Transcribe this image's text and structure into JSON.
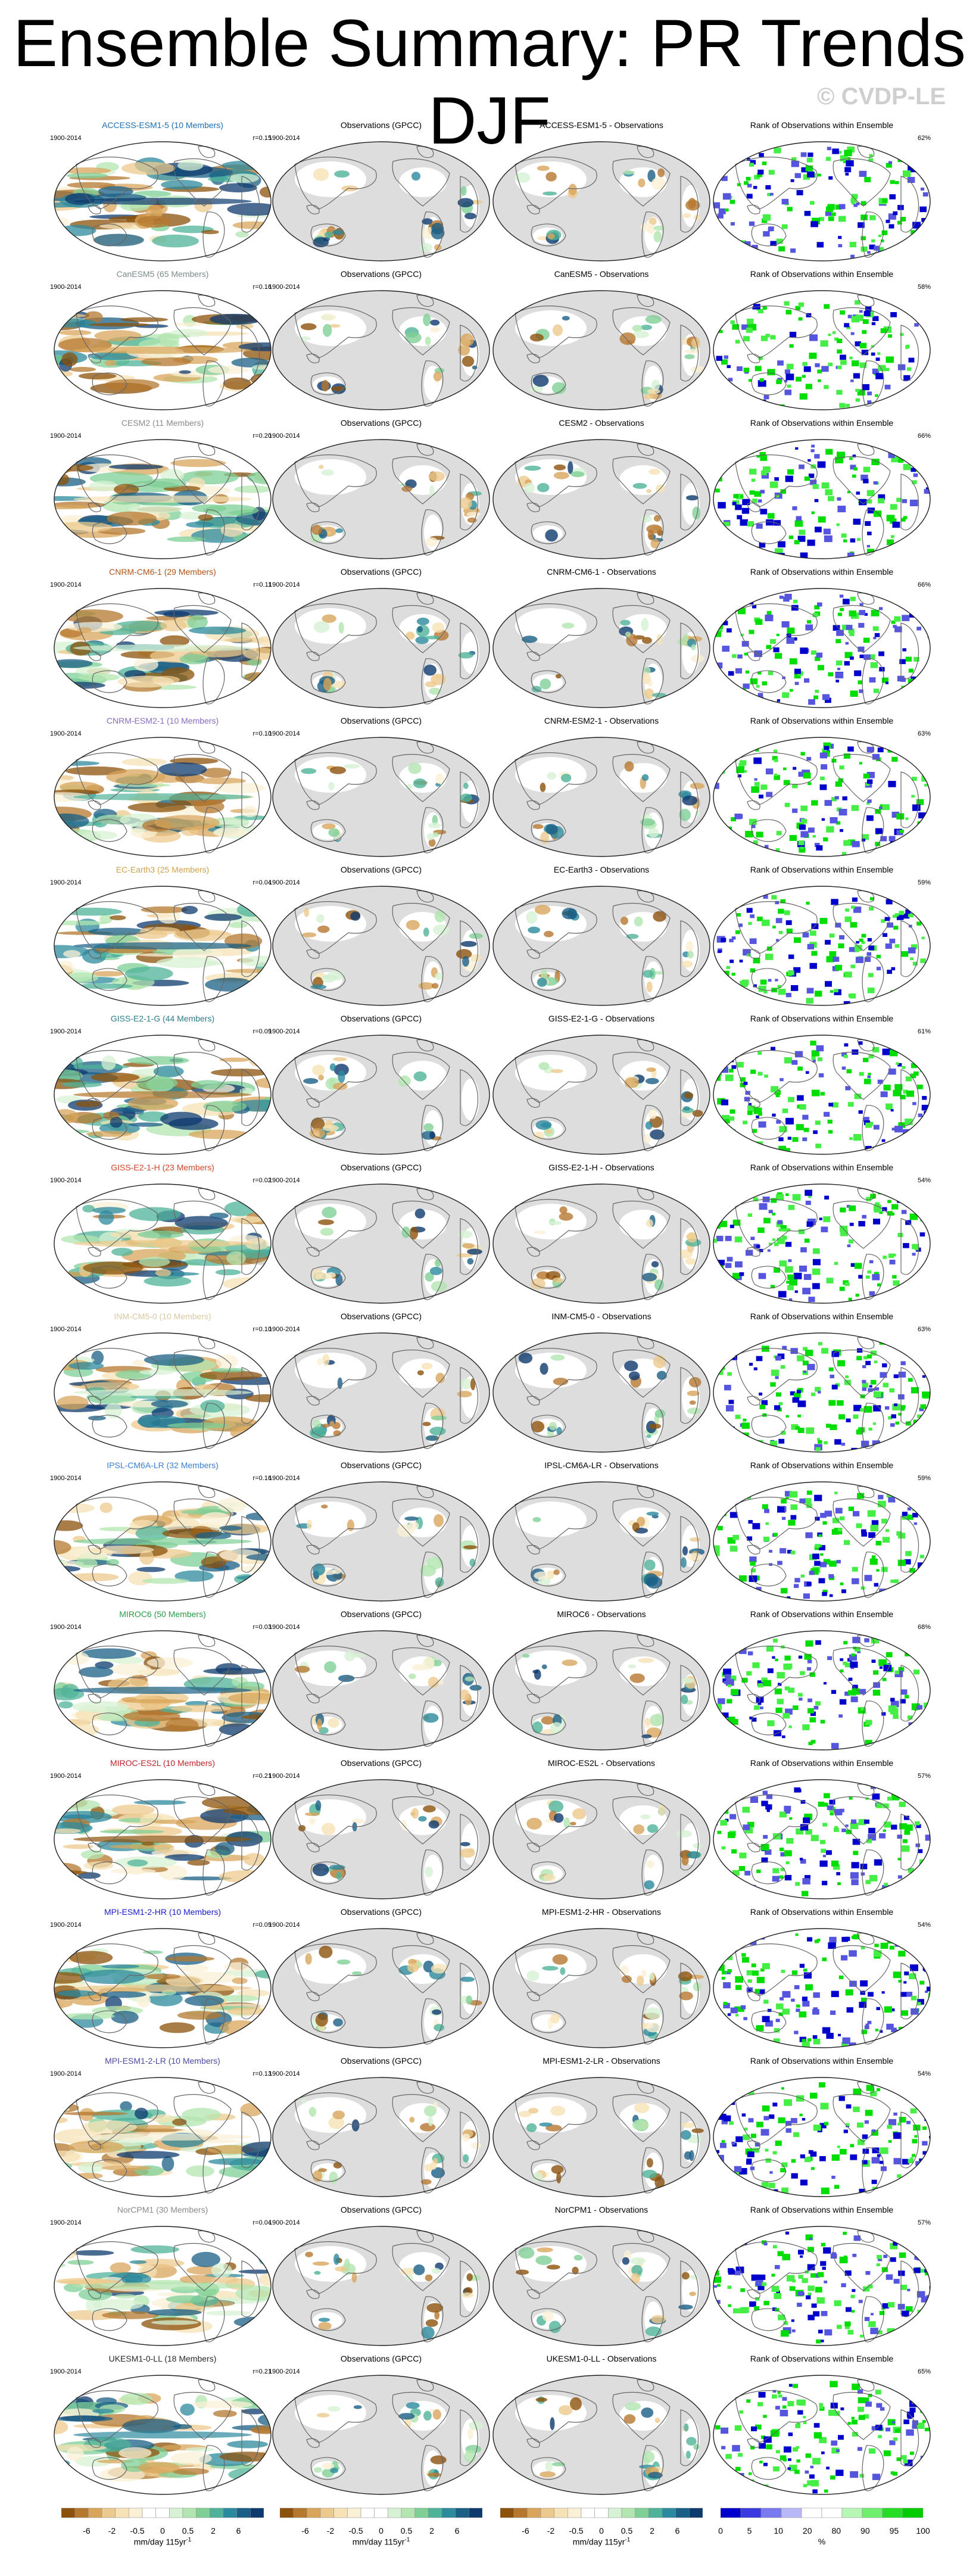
{
  "page": {
    "title": "Ensemble Summary: PR Trends DJF",
    "watermark": "© CVDP-LE"
  },
  "common": {
    "period": "1900-2014",
    "obs_title": "Observations (GPCC)",
    "rank_title": "Rank of Observations within Ensemble"
  },
  "chart_data": {
    "type": "heatmap",
    "variable": "PR",
    "season": "DJF",
    "rows": [
      {
        "model": "ACCESS-ESM1-5",
        "label": "ACCESS-ESM1-5 (10 Members)",
        "color": "#1f6fb4",
        "r": "r=0.15",
        "diff_title": "ACCESS-ESM1-5 - Observations",
        "rank_pct": "62%"
      },
      {
        "model": "CanESM5",
        "label": "CanESM5 (65 Members)",
        "color": "#7a8a8a",
        "r": "r=0.16",
        "diff_title": "CanESM5 - Observations",
        "rank_pct": "58%"
      },
      {
        "model": "CESM2",
        "label": "CESM2 (11 Members)",
        "color": "#8a8a8a",
        "r": "r=0.20",
        "diff_title": "CESM2 - Observations",
        "rank_pct": "66%"
      },
      {
        "model": "CNRM-CM6-1",
        "label": "CNRM-CM6-1 (29 Members)",
        "color": "#b0531a",
        "r": "r=0.11",
        "diff_title": "CNRM-CM6-1 - Observations",
        "rank_pct": "66%"
      },
      {
        "model": "CNRM-ESM2-1",
        "label": "CNRM-ESM2-1 (10 Members)",
        "color": "#8a6bc4",
        "r": "r=0.10",
        "diff_title": "CNRM-ESM2-1 - Observations",
        "rank_pct": "63%"
      },
      {
        "model": "EC-Earth3",
        "label": "EC-Earth3 (25 Members)",
        "color": "#d2a24a",
        "r": "r=0.04",
        "diff_title": "EC-Earth3 - Observations",
        "rank_pct": "59%"
      },
      {
        "model": "GISS-E2-1-G",
        "label": "GISS-E2-1-G (44 Members)",
        "color": "#2e7d8a",
        "r": "r=0.09",
        "diff_title": "GISS-E2-1-G - Observations",
        "rank_pct": "61%"
      },
      {
        "model": "GISS-E2-1-H",
        "label": "GISS-E2-1-H (23 Members)",
        "color": "#d2452a",
        "r": "r=0.02",
        "diff_title": "GISS-E2-1-H - Observations",
        "rank_pct": "54%"
      },
      {
        "model": "INM-CM5-0",
        "label": "INM-CM5-0 (10 Members)",
        "color": "#d9c9a0",
        "r": "r=0.10",
        "diff_title": "INM-CM5-0 - Observations",
        "rank_pct": "63%"
      },
      {
        "model": "IPSL-CM6A-LR",
        "label": "IPSL-CM6A-LR (32 Members)",
        "color": "#3a7fd0",
        "r": "r=0.16",
        "diff_title": "IPSL-CM6A-LR - Observations",
        "rank_pct": "59%"
      },
      {
        "model": "MIROC6",
        "label": "MIROC6 (50 Members)",
        "color": "#2a9a4a",
        "r": "r=0.03",
        "diff_title": "MIROC6 - Observations",
        "rank_pct": "68%"
      },
      {
        "model": "MIROC-ES2L",
        "label": "MIROC-ES2L (10 Members)",
        "color": "#c0242a",
        "r": "r=0.21",
        "diff_title": "MIROC-ES2L - Observations",
        "rank_pct": "57%"
      },
      {
        "model": "MPI-ESM1-2-HR",
        "label": "MPI-ESM1-2-HR (10 Members)",
        "color": "#1a1ad0",
        "r": "r=0.09",
        "diff_title": "MPI-ESM1-2-HR - Observations",
        "rank_pct": "54%"
      },
      {
        "model": "MPI-ESM1-2-LR",
        "label": "MPI-ESM1-2-LR (10 Members)",
        "color": "#4a4aa0",
        "r": "r=0.13",
        "diff_title": "MPI-ESM1-2-LR - Observations",
        "rank_pct": "54%"
      },
      {
        "model": "NorCPM1",
        "label": "NorCPM1 (30 Members)",
        "color": "#8a8a8a",
        "r": "r=0.04",
        "diff_title": "NorCPM1 - Observations",
        "rank_pct": "57%"
      },
      {
        "model": "UKESM1-0-LL",
        "label": "UKESM1-0-LL (18 Members)",
        "color": "#2a2a2a",
        "r": "r=0.21",
        "diff_title": "UKESM1-0-LL - Observations",
        "rank_pct": "65%"
      }
    ],
    "trend_colorbar": {
      "ticks": [
        "-6",
        "-2",
        "-0.5",
        "0",
        "0.5",
        "2",
        "6"
      ],
      "unit": "mm/day 115yr",
      "unit_exp": "-1",
      "colors": [
        "#8c510a",
        "#b6782f",
        "#d8a55b",
        "#ecc98c",
        "#f6e2b5",
        "#faf0d6",
        "#ffffff",
        "#ffffff",
        "#d7f1d4",
        "#b3e5b0",
        "#7fcf96",
        "#4fb39a",
        "#2c8a9e",
        "#1a5f86",
        "#0d3a6e"
      ]
    },
    "rank_colorbar": {
      "ticks": [
        "0",
        "5",
        "10",
        "20",
        "80",
        "90",
        "95",
        "100"
      ],
      "unit": "%",
      "colors": [
        "#0000cc",
        "#3a3ae0",
        "#7a7af0",
        "#b8b8f8",
        "#ffffff",
        "#ffffff",
        "#b6f7b6",
        "#70ee70",
        "#24dd24",
        "#00cc00"
      ]
    }
  }
}
